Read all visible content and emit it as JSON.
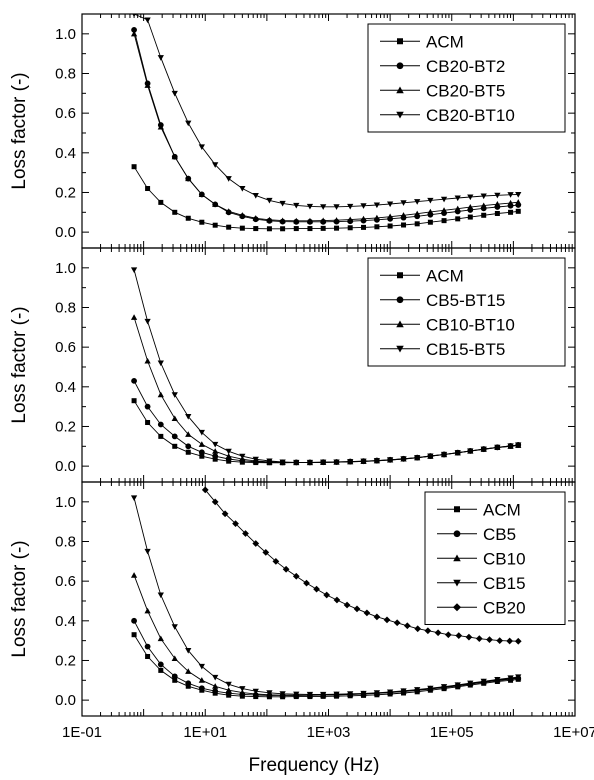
{
  "figure": {
    "x_axis_title": "Frequency (Hz)",
    "x_tick_labels": [
      "1E-01",
      "1E+01",
      "1E+03",
      "1E+05",
      "1E+07"
    ],
    "y_tick_labels": [
      "0.0",
      "0.2",
      "0.4",
      "0.6",
      "0.8",
      "1.0"
    ],
    "y_axis_title": "Loss factor (-)"
  },
  "chart_data": [
    {
      "type": "line",
      "xlabel": "Frequency (Hz)",
      "ylabel": "Loss factor (-)",
      "xscale": "log",
      "xlim": [
        0.1,
        10000000
      ],
      "ylim": [
        -0.08,
        1.1
      ],
      "legend_position": "top-right",
      "x": [
        0.7,
        1.16,
        1.9,
        3.2,
        5.3,
        8.8,
        14.5,
        24,
        40,
        66,
        110,
        180,
        300,
        500,
        820,
        1350,
        2250,
        3700,
        6100,
        10000,
        16500,
        27500,
        45000,
        75000,
        125000,
        200000,
        330000,
        550000,
        900000,
        1200000
      ],
      "series": [
        {
          "name": "ACM",
          "marker": "square",
          "values": [
            0.33,
            0.22,
            0.15,
            0.1,
            0.07,
            0.05,
            0.035,
            0.025,
            0.02,
            0.018,
            0.017,
            0.017,
            0.018,
            0.018,
            0.019,
            0.02,
            0.022,
            0.024,
            0.027,
            0.031,
            0.036,
            0.042,
            0.05,
            0.058,
            0.067,
            0.076,
            0.085,
            0.094,
            0.1,
            0.105
          ]
        },
        {
          "name": "CB20-BT2",
          "marker": "circle",
          "values": [
            1.02,
            0.75,
            0.54,
            0.38,
            0.27,
            0.19,
            0.14,
            0.1,
            0.08,
            0.065,
            0.057,
            0.053,
            0.052,
            0.052,
            0.052,
            0.053,
            0.055,
            0.058,
            0.062,
            0.067,
            0.073,
            0.08,
            0.088,
            0.096,
            0.104,
            0.112,
            0.12,
            0.127,
            0.133,
            0.137
          ]
        },
        {
          "name": "CB20-BT5",
          "marker": "triangle-up",
          "values": [
            1.0,
            0.74,
            0.53,
            0.38,
            0.27,
            0.19,
            0.14,
            0.105,
            0.085,
            0.07,
            0.062,
            0.058,
            0.057,
            0.057,
            0.058,
            0.06,
            0.063,
            0.067,
            0.072,
            0.078,
            0.085,
            0.093,
            0.102,
            0.11,
            0.118,
            0.126,
            0.134,
            0.141,
            0.147,
            0.151
          ]
        },
        {
          "name": "CB20-BT10",
          "marker": "triangle-down",
          "values": [
            1.1,
            1.07,
            0.88,
            0.7,
            0.55,
            0.43,
            0.34,
            0.27,
            0.22,
            0.185,
            0.16,
            0.145,
            0.135,
            0.13,
            0.128,
            0.128,
            0.13,
            0.133,
            0.137,
            0.142,
            0.148,
            0.154,
            0.16,
            0.166,
            0.172,
            0.177,
            0.182,
            0.186,
            0.189,
            0.19
          ]
        }
      ]
    },
    {
      "type": "line",
      "xlabel": "Frequency (Hz)",
      "ylabel": "Loss factor (-)",
      "xscale": "log",
      "xlim": [
        0.1,
        10000000
      ],
      "ylim": [
        -0.08,
        1.1
      ],
      "legend_position": "top-right",
      "x": [
        0.7,
        1.16,
        1.9,
        3.2,
        5.3,
        8.8,
        14.5,
        24,
        40,
        66,
        110,
        180,
        300,
        500,
        820,
        1350,
        2250,
        3700,
        6100,
        10000,
        16500,
        27500,
        45000,
        75000,
        125000,
        200000,
        330000,
        550000,
        900000,
        1200000
      ],
      "series": [
        {
          "name": "ACM",
          "marker": "square",
          "values": [
            0.33,
            0.22,
            0.15,
            0.1,
            0.07,
            0.05,
            0.035,
            0.025,
            0.02,
            0.018,
            0.017,
            0.017,
            0.018,
            0.018,
            0.019,
            0.02,
            0.022,
            0.024,
            0.027,
            0.031,
            0.036,
            0.042,
            0.05,
            0.058,
            0.067,
            0.076,
            0.085,
            0.094,
            0.1,
            0.105
          ]
        },
        {
          "name": "CB5-BT15",
          "marker": "circle",
          "values": [
            0.43,
            0.3,
            0.21,
            0.15,
            0.1,
            0.07,
            0.05,
            0.036,
            0.027,
            0.022,
            0.02,
            0.019,
            0.019,
            0.019,
            0.02,
            0.021,
            0.023,
            0.025,
            0.028,
            0.032,
            0.037,
            0.043,
            0.051,
            0.059,
            0.068,
            0.077,
            0.086,
            0.095,
            0.102,
            0.107
          ]
        },
        {
          "name": "CB10-BT10",
          "marker": "triangle-up",
          "values": [
            0.75,
            0.53,
            0.36,
            0.24,
            0.16,
            0.11,
            0.075,
            0.05,
            0.035,
            0.026,
            0.021,
            0.019,
            0.018,
            0.018,
            0.019,
            0.02,
            0.022,
            0.024,
            0.027,
            0.031,
            0.036,
            0.042,
            0.05,
            0.058,
            0.067,
            0.076,
            0.085,
            0.094,
            0.1,
            0.105
          ]
        },
        {
          "name": "CB15-BT5",
          "marker": "triangle-down",
          "values": [
            0.99,
            0.73,
            0.52,
            0.36,
            0.25,
            0.17,
            0.11,
            0.075,
            0.05,
            0.035,
            0.026,
            0.021,
            0.019,
            0.019,
            0.02,
            0.021,
            0.023,
            0.025,
            0.028,
            0.032,
            0.037,
            0.043,
            0.051,
            0.059,
            0.068,
            0.077,
            0.086,
            0.095,
            0.102,
            0.107
          ]
        }
      ]
    },
    {
      "type": "line",
      "xlabel": "Frequency (Hz)",
      "ylabel": "Loss factor (-)",
      "xscale": "log",
      "xlim": [
        0.1,
        10000000
      ],
      "ylim": [
        -0.08,
        1.1
      ],
      "legend_position": "top-right",
      "x": [
        0.7,
        1.16,
        1.9,
        3.2,
        5.3,
        8.8,
        14.5,
        24,
        40,
        66,
        110,
        180,
        300,
        500,
        820,
        1350,
        2250,
        3700,
        6100,
        10000,
        16500,
        27500,
        45000,
        75000,
        125000,
        200000,
        330000,
        550000,
        900000,
        1200000
      ],
      "series": [
        {
          "name": "ACM",
          "marker": "square",
          "values": [
            0.33,
            0.22,
            0.15,
            0.1,
            0.07,
            0.05,
            0.035,
            0.025,
            0.02,
            0.018,
            0.017,
            0.017,
            0.018,
            0.018,
            0.019,
            0.02,
            0.022,
            0.024,
            0.027,
            0.031,
            0.036,
            0.042,
            0.05,
            0.058,
            0.067,
            0.076,
            0.085,
            0.094,
            0.1,
            0.105
          ]
        },
        {
          "name": "CB5",
          "marker": "circle",
          "values": [
            0.4,
            0.27,
            0.18,
            0.12,
            0.085,
            0.06,
            0.045,
            0.035,
            0.029,
            0.026,
            0.024,
            0.024,
            0.024,
            0.025,
            0.026,
            0.027,
            0.029,
            0.031,
            0.034,
            0.038,
            0.043,
            0.049,
            0.056,
            0.064,
            0.072,
            0.081,
            0.09,
            0.099,
            0.106,
            0.11
          ]
        },
        {
          "name": "CB10",
          "marker": "triangle-up",
          "values": [
            0.63,
            0.45,
            0.31,
            0.21,
            0.145,
            0.1,
            0.07,
            0.05,
            0.038,
            0.031,
            0.027,
            0.025,
            0.025,
            0.025,
            0.026,
            0.027,
            0.029,
            0.032,
            0.035,
            0.039,
            0.045,
            0.051,
            0.058,
            0.066,
            0.075,
            0.084,
            0.093,
            0.102,
            0.109,
            0.113
          ]
        },
        {
          "name": "CB15",
          "marker": "triangle-down",
          "values": [
            1.02,
            0.75,
            0.53,
            0.37,
            0.25,
            0.17,
            0.115,
            0.08,
            0.058,
            0.045,
            0.037,
            0.032,
            0.03,
            0.029,
            0.029,
            0.03,
            0.032,
            0.034,
            0.037,
            0.041,
            0.047,
            0.053,
            0.06,
            0.068,
            0.077,
            0.086,
            0.095,
            0.104,
            0.112,
            0.117
          ]
        },
        {
          "name": "CB20",
          "marker": "diamond",
          "x": [
            10,
            14.5,
            21,
            31,
            45,
            66,
            96,
            140,
            205,
            300,
            440,
            640,
            935,
            1370,
            2000,
            2900,
            4200,
            6100,
            8900,
            13000,
            19000,
            28000,
            41000,
            60000,
            88000,
            130000,
            190000,
            280000,
            410000,
            600000,
            870000,
            1200000
          ],
          "values": [
            1.06,
            1.0,
            0.94,
            0.89,
            0.84,
            0.79,
            0.745,
            0.7,
            0.66,
            0.625,
            0.59,
            0.56,
            0.53,
            0.505,
            0.48,
            0.46,
            0.44,
            0.42,
            0.405,
            0.39,
            0.375,
            0.36,
            0.35,
            0.34,
            0.33,
            0.325,
            0.318,
            0.31,
            0.305,
            0.3,
            0.298,
            0.297
          ]
        }
      ]
    }
  ]
}
